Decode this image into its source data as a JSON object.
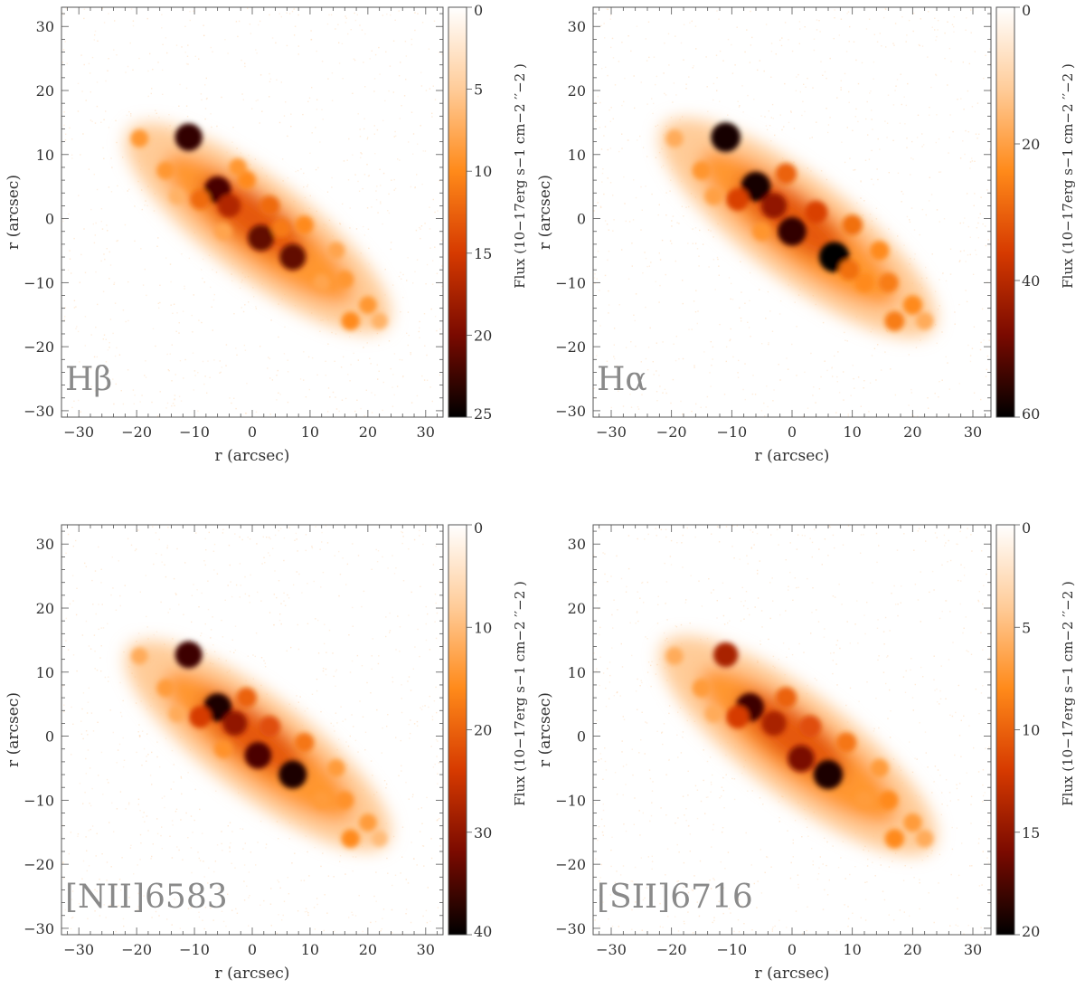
{
  "chart_data": [
    {
      "type": "heatmap",
      "label": "Hβ",
      "xlabel": "r (arcsec)",
      "ylabel": "r (arcsec)",
      "xlim": [
        -33,
        33
      ],
      "ylim": [
        -31,
        33
      ],
      "x_ticks": [
        "−30",
        "−20",
        "−10",
        "0",
        "10",
        "20",
        "30"
      ],
      "y_ticks": [
        "−30",
        "−20",
        "−10",
        "0",
        "10",
        "20",
        "30"
      ],
      "colorbar": {
        "label": "Flux (10−17erg s−1 cm−2 ′′−2 )",
        "range": [
          0,
          25
        ],
        "ticks": [
          "0",
          "5",
          "10",
          "15",
          "20",
          "25"
        ],
        "colors": [
          "#ffffff",
          "#ffcc99",
          "#ff8a1a",
          "#d63a00",
          "#7a0a00",
          "#000000"
        ]
      },
      "grid": false,
      "knots": [
        {
          "x": -11,
          "y": 12.7,
          "flux": 23
        },
        {
          "x": -6,
          "y": 4.5,
          "flux": 22
        },
        {
          "x": 1.5,
          "y": -3,
          "flux": 21
        },
        {
          "x": 7,
          "y": -6,
          "flux": 21
        },
        {
          "x": -4,
          "y": 2,
          "flux": 17
        },
        {
          "x": -19.5,
          "y": 12.5,
          "flux": 9
        },
        {
          "x": -15,
          "y": 7.5,
          "flux": 9
        },
        {
          "x": 3,
          "y": 2,
          "flux": 12
        },
        {
          "x": -1,
          "y": 6,
          "flux": 10
        },
        {
          "x": 9,
          "y": -1,
          "flux": 10
        },
        {
          "x": 14.5,
          "y": -5,
          "flux": 8
        },
        {
          "x": 16,
          "y": -9.5,
          "flux": 9
        },
        {
          "x": 17,
          "y": -16,
          "flux": 10
        },
        {
          "x": 20,
          "y": -13.5,
          "flux": 9
        },
        {
          "x": 22,
          "y": -16,
          "flux": 7
        },
        {
          "x": -9,
          "y": 3,
          "flux": 12
        },
        {
          "x": -2.5,
          "y": 8,
          "flux": 9
        },
        {
          "x": 5,
          "y": -1.5,
          "flux": 11
        },
        {
          "x": -13,
          "y": 3.5,
          "flux": 7
        },
        {
          "x": 12,
          "y": -10,
          "flux": 8
        },
        {
          "x": -5,
          "y": -2,
          "flux": 8
        }
      ]
    },
    {
      "type": "heatmap",
      "label": "Hα",
      "xlabel": "r (arcsec)",
      "ylabel": "r (arcsec)",
      "xlim": [
        -33,
        33
      ],
      "ylim": [
        -31,
        33
      ],
      "x_ticks": [
        "−30",
        "−20",
        "−10",
        "0",
        "10",
        "20",
        "30"
      ],
      "y_ticks": [
        "−30",
        "−20",
        "−10",
        "0",
        "10",
        "20",
        "30"
      ],
      "colorbar": {
        "label": "Flux (10−17erg s−1 cm−2 ′′−2 )",
        "range": [
          0,
          60
        ],
        "ticks": [
          "0",
          "20",
          "40",
          "60"
        ],
        "colors": [
          "#ffffff",
          "#ffcc99",
          "#ff8a1a",
          "#d63a00",
          "#7a0a00",
          "#000000"
        ]
      },
      "grid": false,
      "knots": [
        {
          "x": -11,
          "y": 12.7,
          "flux": 58
        },
        {
          "x": -6,
          "y": 5,
          "flux": 58
        },
        {
          "x": 0,
          "y": -2,
          "flux": 55
        },
        {
          "x": 7,
          "y": -6,
          "flux": 60
        },
        {
          "x": -3,
          "y": 2,
          "flux": 45
        },
        {
          "x": -19.5,
          "y": 12.5,
          "flux": 18
        },
        {
          "x": -15,
          "y": 7.5,
          "flux": 22
        },
        {
          "x": 4,
          "y": 1,
          "flux": 35
        },
        {
          "x": -1,
          "y": 7,
          "flux": 30
        },
        {
          "x": 10,
          "y": -1,
          "flux": 28
        },
        {
          "x": 14.5,
          "y": -5,
          "flux": 24
        },
        {
          "x": 16,
          "y": -10,
          "flux": 26
        },
        {
          "x": 17,
          "y": -16,
          "flux": 26
        },
        {
          "x": 20,
          "y": -13.5,
          "flux": 24
        },
        {
          "x": 22,
          "y": -16,
          "flux": 18
        },
        {
          "x": -9,
          "y": 3,
          "flux": 35
        },
        {
          "x": -13,
          "y": 3.5,
          "flux": 20
        },
        {
          "x": 12,
          "y": -10,
          "flux": 24
        },
        {
          "x": -5,
          "y": -2,
          "flux": 22
        },
        {
          "x": 9.5,
          "y": -8,
          "flux": 28
        }
      ]
    },
    {
      "type": "heatmap",
      "label": "[NII]6583",
      "xlabel": "r (arcsec)",
      "ylabel": "r (arcsec)",
      "xlim": [
        -33,
        33
      ],
      "ylim": [
        -31,
        33
      ],
      "x_ticks": [
        "−30",
        "−20",
        "−10",
        "0",
        "10",
        "20",
        "30"
      ],
      "y_ticks": [
        "−30",
        "−20",
        "−10",
        "0",
        "10",
        "20",
        "30"
      ],
      "colorbar": {
        "label": "Flux (10−17erg s−1 cm−2 ′′−2 )",
        "range": [
          0,
          40
        ],
        "ticks": [
          "0",
          "10",
          "20",
          "30",
          "40"
        ],
        "colors": [
          "#ffffff",
          "#ffcc99",
          "#ff8a1a",
          "#d63a00",
          "#7a0a00",
          "#000000"
        ]
      },
      "grid": false,
      "knots": [
        {
          "x": -11,
          "y": 12.7,
          "flux": 36
        },
        {
          "x": -6,
          "y": 4.5,
          "flux": 38
        },
        {
          "x": 1,
          "y": -3,
          "flux": 35
        },
        {
          "x": 7,
          "y": -6,
          "flux": 38
        },
        {
          "x": -3,
          "y": 2,
          "flux": 30
        },
        {
          "x": -19.5,
          "y": 12.5,
          "flux": 12
        },
        {
          "x": -15,
          "y": 7.5,
          "flux": 14
        },
        {
          "x": 3,
          "y": 1.5,
          "flux": 22
        },
        {
          "x": -1,
          "y": 6,
          "flux": 20
        },
        {
          "x": 9,
          "y": -1,
          "flux": 18
        },
        {
          "x": 14.5,
          "y": -5,
          "flux": 14
        },
        {
          "x": 16,
          "y": -10,
          "flux": 15
        },
        {
          "x": 17,
          "y": -16,
          "flux": 16
        },
        {
          "x": 20,
          "y": -13.5,
          "flux": 14
        },
        {
          "x": 22,
          "y": -16,
          "flux": 10
        },
        {
          "x": -9,
          "y": 3,
          "flux": 24
        },
        {
          "x": -13,
          "y": 3.5,
          "flux": 12
        },
        {
          "x": 12,
          "y": -10,
          "flux": 14
        },
        {
          "x": -5,
          "y": -2,
          "flux": 15
        }
      ]
    },
    {
      "type": "heatmap",
      "label": "[SII]6716",
      "xlabel": "r (arcsec)",
      "ylabel": "r (arcsec)",
      "xlim": [
        -33,
        33
      ],
      "ylim": [
        -31,
        33
      ],
      "x_ticks": [
        "−30",
        "−20",
        "−10",
        "0",
        "10",
        "20",
        "30"
      ],
      "y_ticks": [
        "−30",
        "−20",
        "−10",
        "0",
        "10",
        "20",
        "30"
      ],
      "colorbar": {
        "label": "Flux (10−17erg s−1 cm−2 ′′−2 )",
        "range": [
          0,
          20
        ],
        "ticks": [
          "0",
          "5",
          "10",
          "15",
          "20"
        ],
        "colors": [
          "#ffffff",
          "#ffcc99",
          "#ff8a1a",
          "#d63a00",
          "#7a0a00",
          "#000000"
        ]
      },
      "grid": false,
      "knots": [
        {
          "x": -11,
          "y": 12.7,
          "flux": 14
        },
        {
          "x": -7,
          "y": 4.5,
          "flux": 18
        },
        {
          "x": 1.5,
          "y": -3.5,
          "flux": 16
        },
        {
          "x": 6,
          "y": -6,
          "flux": 19
        },
        {
          "x": -3,
          "y": 2,
          "flux": 14
        },
        {
          "x": -19.5,
          "y": 12.5,
          "flux": 6
        },
        {
          "x": -15,
          "y": 7.5,
          "flux": 7
        },
        {
          "x": 3,
          "y": 1.5,
          "flux": 11
        },
        {
          "x": -1,
          "y": 6,
          "flux": 10
        },
        {
          "x": 9,
          "y": -1,
          "flux": 9
        },
        {
          "x": 14.5,
          "y": -5,
          "flux": 7
        },
        {
          "x": 16,
          "y": -10,
          "flux": 8
        },
        {
          "x": 17,
          "y": -16,
          "flux": 8
        },
        {
          "x": 20,
          "y": -13.5,
          "flux": 7
        },
        {
          "x": 22,
          "y": -16,
          "flux": 6
        },
        {
          "x": -9,
          "y": 3,
          "flux": 12
        },
        {
          "x": -13,
          "y": 3.5,
          "flux": 6
        },
        {
          "x": 12,
          "y": -10,
          "flux": 7
        }
      ]
    }
  ]
}
